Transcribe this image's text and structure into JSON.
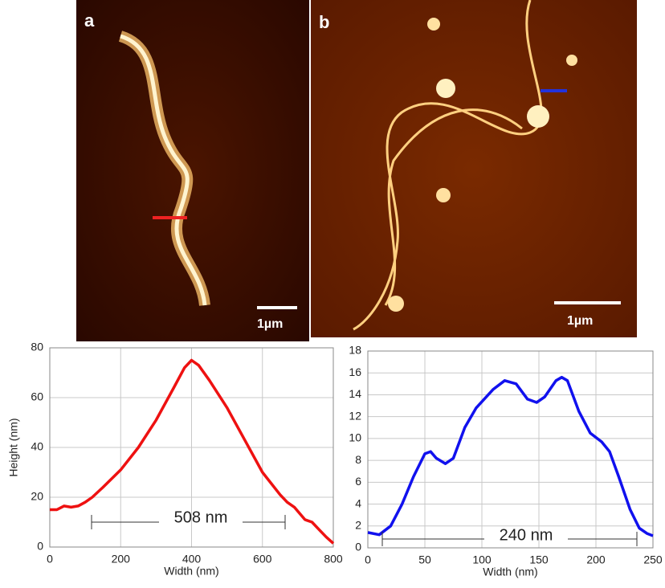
{
  "panels": [
    {
      "label": "a",
      "scale_bar": "1µm"
    },
    {
      "label": "b",
      "scale_bar": "1µm"
    }
  ],
  "chart_data": [
    {
      "type": "line",
      "x_label": "Width (nm)",
      "y_label": "Height (nm)",
      "annotation": "508 nm",
      "color": "#ee1111",
      "x": [
        0,
        20,
        40,
        60,
        80,
        100,
        120,
        150,
        200,
        250,
        300,
        350,
        380,
        400,
        420,
        450,
        500,
        550,
        600,
        650,
        670,
        690,
        720,
        740,
        760,
        780,
        800
      ],
      "values": [
        15,
        15,
        16.5,
        16,
        16.5,
        18,
        20,
        24,
        31,
        40,
        51,
        64,
        72,
        75,
        73,
        67,
        56,
        43,
        30,
        21,
        18,
        16,
        11,
        10,
        7,
        4,
        1.5
      ],
      "xlim": [
        0,
        800
      ],
      "xticks": [
        0,
        200,
        400,
        600,
        800
      ],
      "ylim": [
        0,
        80
      ],
      "yticks": [
        0,
        20,
        40,
        60,
        80
      ],
      "grid": true
    },
    {
      "type": "line",
      "x_label": "Width (nm)",
      "annotation": "240 nm",
      "color": "#1111ee",
      "x": [
        0,
        10,
        20,
        30,
        40,
        50,
        55,
        60,
        68,
        75,
        85,
        95,
        110,
        120,
        130,
        140,
        148,
        155,
        165,
        170,
        175,
        185,
        195,
        205,
        212,
        220,
        230,
        238,
        245,
        250
      ],
      "values": [
        1.4,
        1.2,
        2,
        4,
        6.5,
        8.6,
        8.8,
        8.2,
        7.7,
        8.2,
        11,
        12.8,
        14.5,
        15.3,
        15,
        13.6,
        13.3,
        13.8,
        15.3,
        15.6,
        15.3,
        12.5,
        10.5,
        9.7,
        8.8,
        6.5,
        3.5,
        1.8,
        1.3,
        1.1
      ],
      "xlim": [
        0,
        250
      ],
      "xticks": [
        0,
        50,
        100,
        150,
        200,
        250
      ],
      "ylim": [
        0,
        18
      ],
      "yticks": [
        0,
        2,
        4,
        6,
        8,
        10,
        12,
        14,
        16,
        18
      ],
      "grid": true
    }
  ]
}
